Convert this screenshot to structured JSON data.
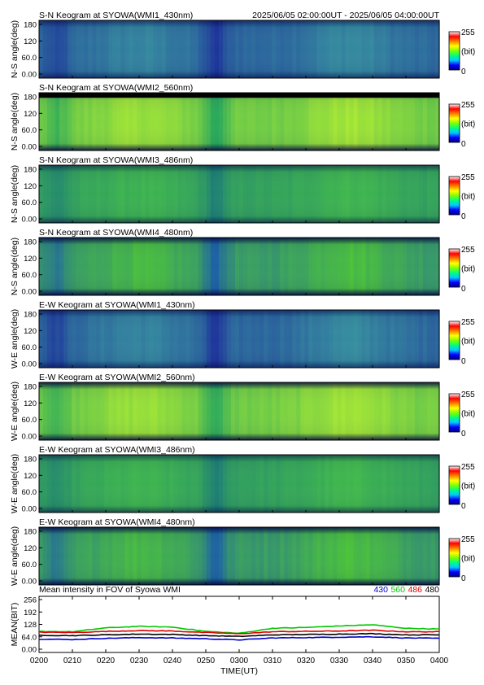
{
  "header": {
    "time_range": "2025/06/05 02:00:00UT - 2025/06/05 04:00:00UT"
  },
  "colorbar": {
    "max_label": "255",
    "unit_label": "(bit)",
    "min_label": "0",
    "colors": [
      "#000080",
      "#0000ff",
      "#00c8ff",
      "#00ff80",
      "#80ff00",
      "#ffff00",
      "#ff8000",
      "#ff0000",
      "#ffffff"
    ]
  },
  "panels": [
    {
      "title": "S-N Keogram at SYOWA(WMI1_430nm)",
      "ylabel": "N-S angle(deg)",
      "ticks": [
        "180",
        "120",
        "60.0",
        "0.00"
      ],
      "base": "#2a3ec4",
      "bright": "#3a9aa0",
      "dark": "#1a2a9a",
      "theme": "blue"
    },
    {
      "title": "S-N Keogram at SYOWA(WMI2_560nm)",
      "ylabel": "N-S angle(deg)",
      "ticks": [
        "180",
        "120",
        "60.0",
        "0.00"
      ],
      "base": "#3ad23a",
      "bright": "#b8f030",
      "dark": "#18a060",
      "theme": "green"
    },
    {
      "title": "S-N Keogram at SYOWA(WMI3_486nm)",
      "ylabel": "N-S angle(deg)",
      "ticks": [
        "180",
        "120",
        "60.0",
        "0.00"
      ],
      "base": "#2aa858",
      "bright": "#46c048",
      "dark": "#1a7a78",
      "theme": "teal"
    },
    {
      "title": "S-N Keogram at SYOWA(WMI4_480nm)",
      "ylabel": "N-S angle(deg)",
      "ticks": [
        "180",
        "120",
        "60.0",
        "0.00"
      ],
      "base": "#28b44a",
      "bright": "#52d02c",
      "dark": "#1858b0",
      "theme": "teal2"
    },
    {
      "title": "E-W Keogram at SYOWA(WMI1_430nm)",
      "ylabel": "W-E angle(deg)",
      "ticks": [
        "180",
        "120",
        "60.0",
        "0.00"
      ],
      "base": "#2a3ec4",
      "bright": "#3a9aa0",
      "dark": "#1a2a9a",
      "theme": "blue"
    },
    {
      "title": "E-W Keogram at SYOWA(WMI2_560nm)",
      "ylabel": "W-E angle(deg)",
      "ticks": [
        "180",
        "120",
        "60.0",
        "0.00"
      ],
      "base": "#3ad23a",
      "bright": "#b8f030",
      "dark": "#18a060",
      "theme": "green"
    },
    {
      "title": "E-W Keogram at SYOWA(WMI3_486nm)",
      "ylabel": "W-E angle(deg)",
      "ticks": [
        "180",
        "120",
        "60.0",
        "0.00"
      ],
      "base": "#2aa858",
      "bright": "#46c048",
      "dark": "#1a7a78",
      "theme": "teal"
    },
    {
      "title": "E-W Keogram at SYOWA(WMI4_480nm)",
      "ylabel": "W-E angle(deg)",
      "ticks": [
        "180",
        "120",
        "60.0",
        "0.00"
      ],
      "base": "#28b44a",
      "bright": "#52d02c",
      "dark": "#1858b0",
      "theme": "teal2"
    }
  ],
  "xaxis": {
    "ticks": [
      "0200",
      "0210",
      "0220",
      "0230",
      "0240",
      "0250",
      "0300",
      "0310",
      "0320",
      "0330",
      "0340",
      "0350",
      "0400"
    ],
    "label": "TIME(UT)"
  },
  "chart_data": {
    "type": "line",
    "title": "Mean intensity in FOV of Syowa WMI",
    "xlabel": "TIME(UT)",
    "ylabel": "MEAN(BIT)",
    "ylim": [
      0,
      256
    ],
    "yticks": [
      "256",
      "192",
      "128",
      "64.0",
      "0.00"
    ],
    "x": [
      "0200",
      "0210",
      "0220",
      "0230",
      "0240",
      "0250",
      "0300",
      "0310",
      "0320",
      "0330",
      "0340",
      "0350",
      "0400"
    ],
    "series": [
      {
        "name": "430",
        "color": "#0000c8",
        "values": [
          52,
          50,
          56,
          60,
          58,
          54,
          48,
          58,
          60,
          62,
          64,
          58,
          56
        ]
      },
      {
        "name": "560",
        "color": "#00c800",
        "values": [
          92,
          90,
          110,
          118,
          114,
          92,
          82,
          108,
          112,
          120,
          126,
          108,
          104
        ]
      },
      {
        "name": "486",
        "color": "#e00000",
        "values": [
          88,
          86,
          92,
          96,
          94,
          86,
          80,
          90,
          92,
          94,
          98,
          90,
          90
        ]
      },
      {
        "name": "480",
        "color": "#000000",
        "values": [
          72,
          70,
          74,
          78,
          76,
          70,
          66,
          74,
          76,
          78,
          80,
          74,
          74
        ]
      }
    ]
  }
}
